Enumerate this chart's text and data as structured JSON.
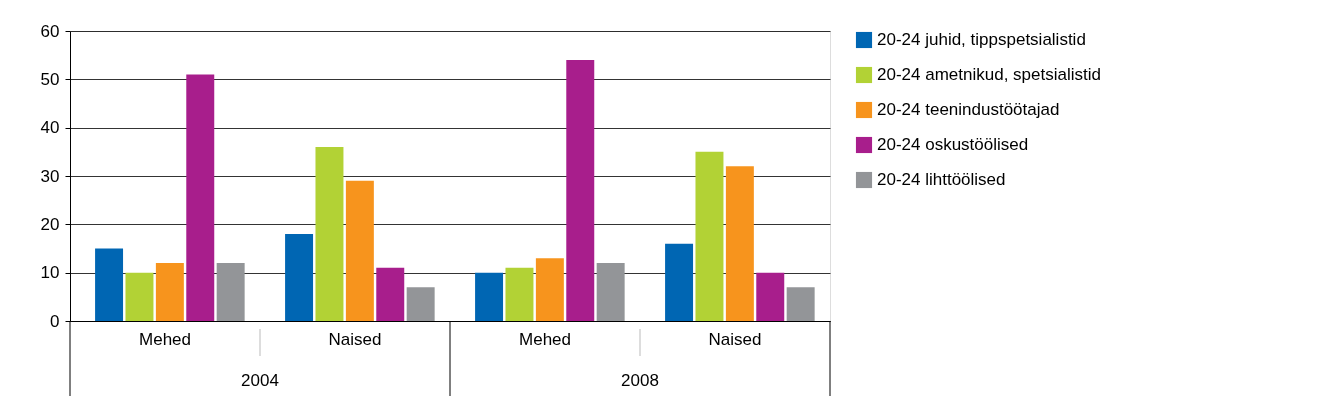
{
  "chart_data": {
    "type": "bar",
    "categories": [
      "Mehed",
      "Naised",
      "Mehed",
      "Naised"
    ],
    "annotations": [
      "2004",
      "2008"
    ],
    "series": [
      {
        "name": "20-24 juhid, tippspetsialistid",
        "color": "#0066b3",
        "values": [
          15,
          18,
          10,
          16
        ]
      },
      {
        "name": "20-24 ametnikud, spetsialistid",
        "color": "#b2d235",
        "values": [
          10,
          36,
          11,
          35
        ]
      },
      {
        "name": "20-24 teenindustöötajad",
        "color": "#f7941d",
        "values": [
          12,
          29,
          13,
          32
        ]
      },
      {
        "name": "20-24 oskustöölised",
        "color": "#a81e8c",
        "values": [
          51,
          11,
          54,
          10
        ]
      },
      {
        "name": "20-24 lihttöölised",
        "color": "#939598",
        "values": [
          12,
          7,
          12,
          7
        ]
      }
    ],
    "ylim": [
      0,
      60
    ],
    "yticks": [
      0,
      10,
      20,
      30,
      40,
      50,
      60
    ],
    "grid": "y",
    "legend": "top right"
  }
}
